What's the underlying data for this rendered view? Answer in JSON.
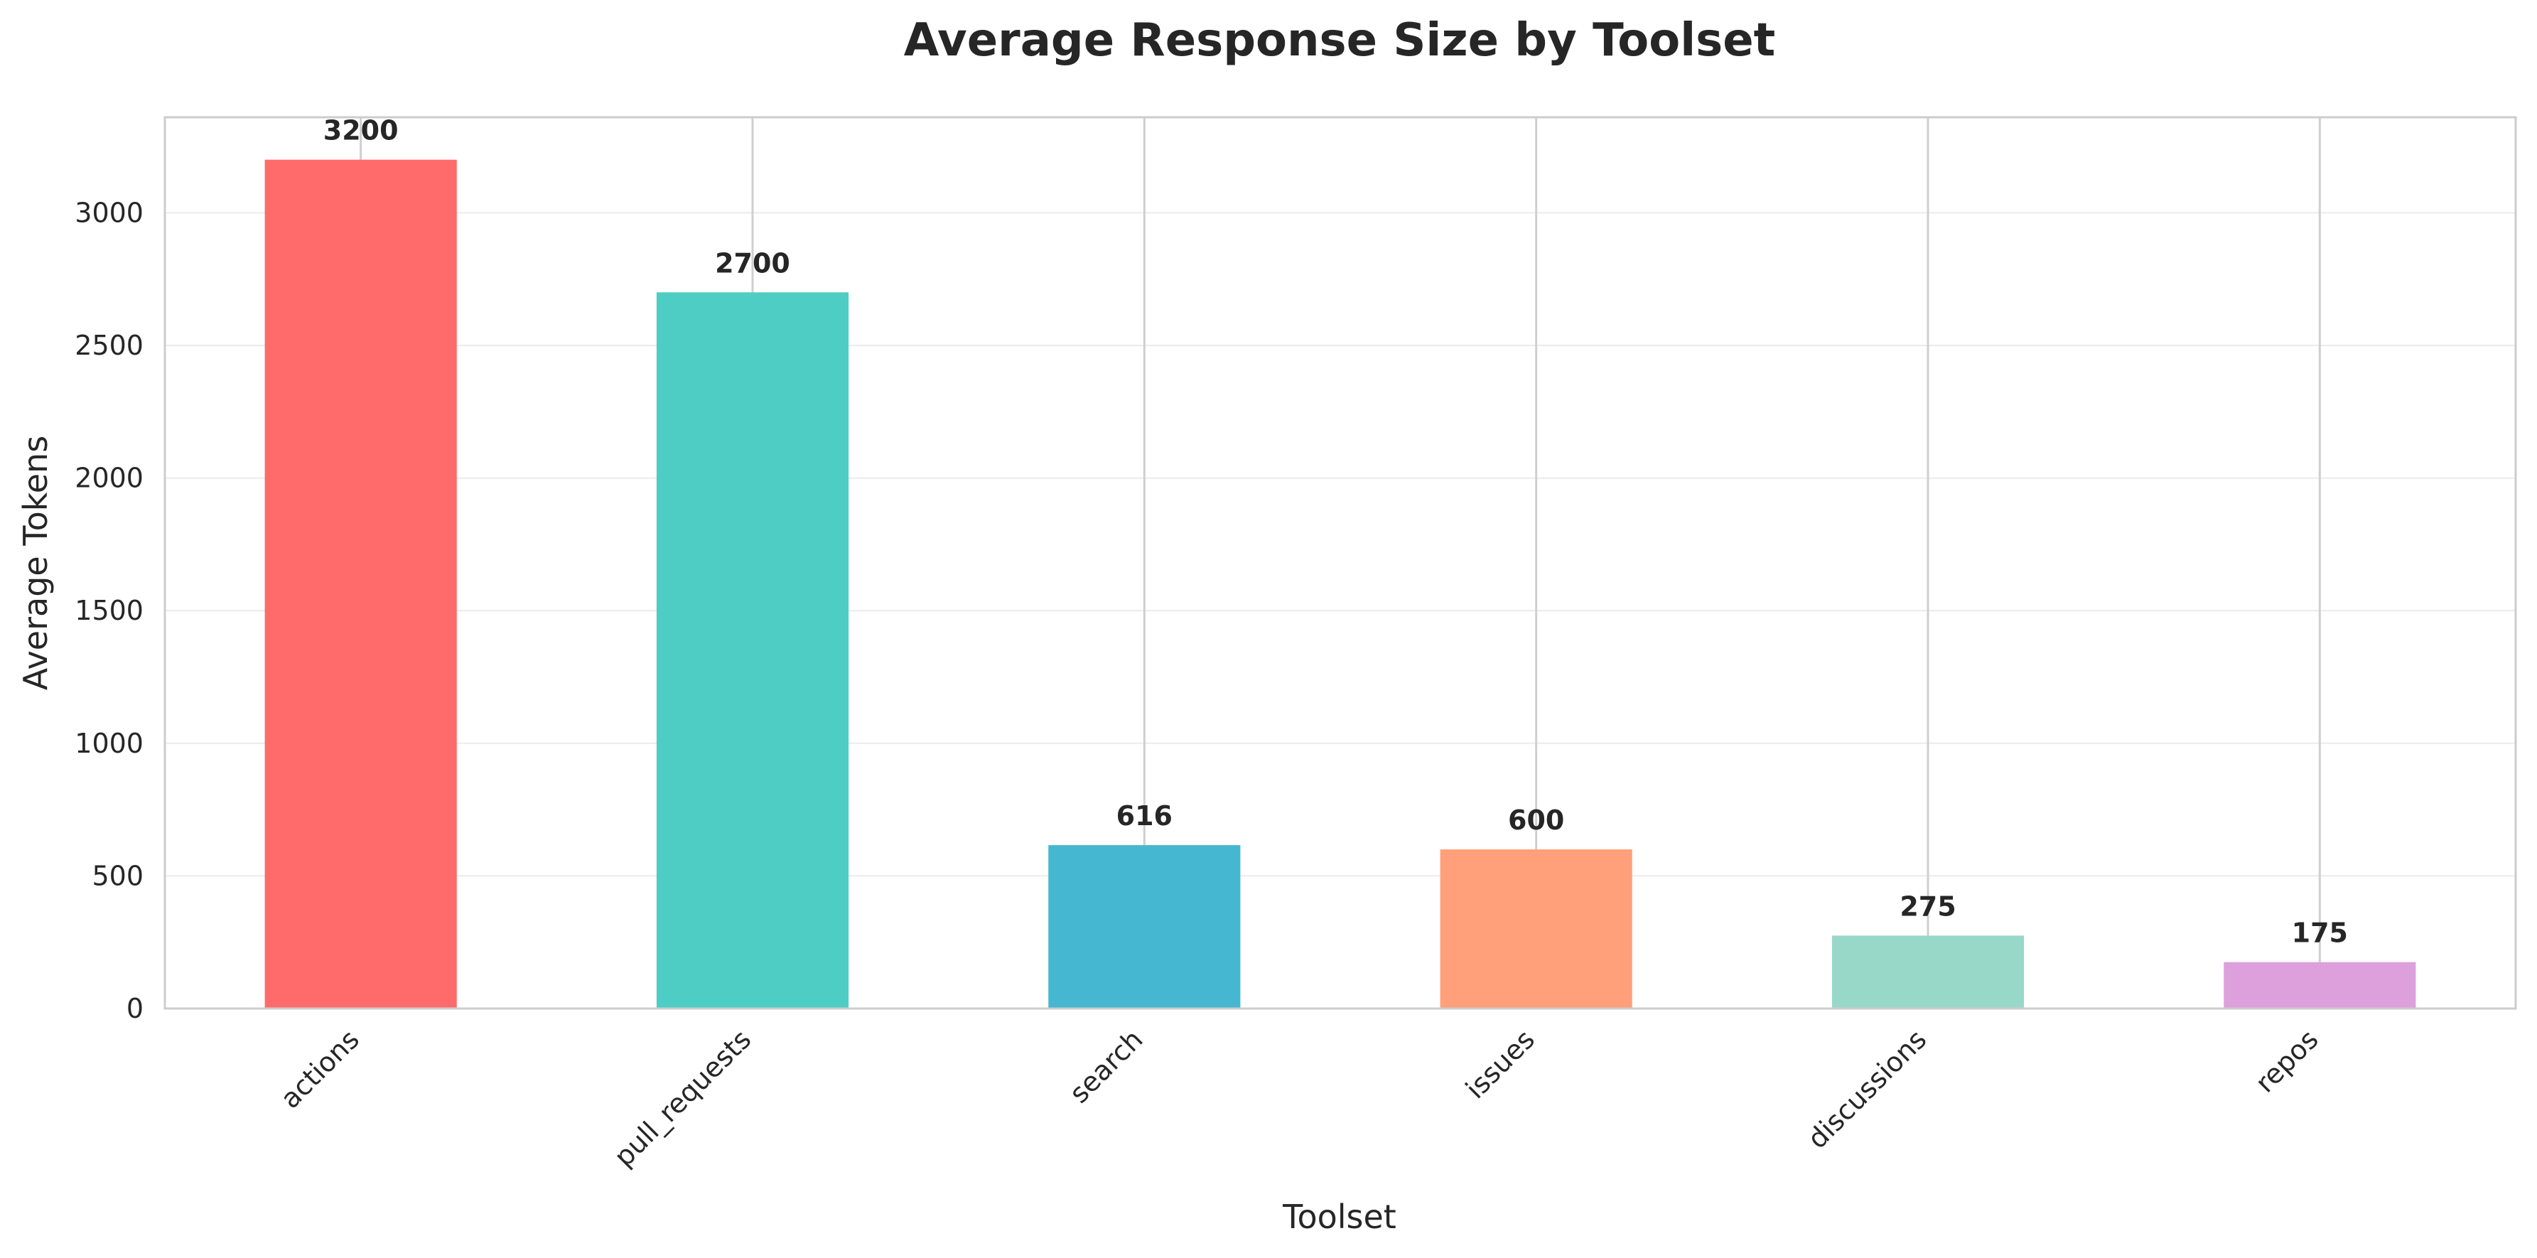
{
  "chart_data": {
    "type": "bar",
    "title": "Average Response Size by Toolset",
    "xlabel": "Toolset",
    "ylabel": "Average Tokens",
    "categories": [
      "actions",
      "pull_requests",
      "search",
      "issues",
      "discussions",
      "repos"
    ],
    "values": [
      3200,
      2700,
      616,
      600,
      275,
      175
    ],
    "data_labels": [
      "3200",
      "2700",
      "616",
      "600",
      "275",
      "175"
    ],
    "colors": [
      "#FF6B6B",
      "#4ECDC4",
      "#45B7D1",
      "#FFA07A",
      "#98D8C8",
      "#DDA0DD"
    ],
    "ylim": [
      0,
      3360
    ],
    "yticks": [
      0,
      500,
      1000,
      1500,
      2000,
      2500,
      3000
    ],
    "ytick_labels": [
      "0",
      "500",
      "1000",
      "1500",
      "2000",
      "2500",
      "3000"
    ],
    "grid": "on",
    "legend": "none"
  }
}
